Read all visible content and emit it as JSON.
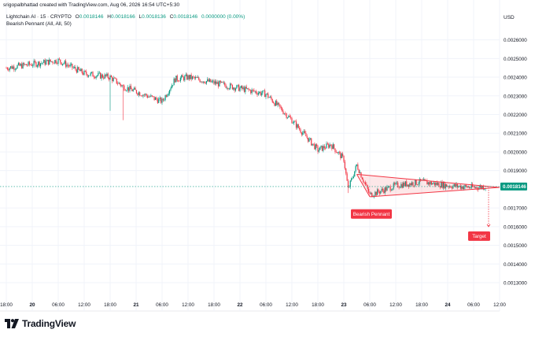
{
  "header": {
    "author_line": "srigopalbhattad created with TradingView.com, Aug 06, 2026 16:54 UTC+5:30",
    "symbol": "Lightchain AI · 15 · CRYPTO",
    "ohlc": {
      "o_label": "O",
      "o": "0.0018146",
      "h_label": "H",
      "h": "0.0018166",
      "l_label": "L",
      "l": "0.0018136",
      "c_label": "C",
      "c": "0.0018146",
      "change": "0.0000000 (0.00%)"
    },
    "indicator": "Bearish Pennant (All, All, 50)"
  },
  "price_axis": {
    "currency": "USD",
    "ticks": [
      "0.0026000",
      "0.0025000",
      "0.0024000",
      "0.0023000",
      "0.0022000",
      "0.0021000",
      "0.0020000",
      "0.0019000",
      "0.0017000",
      "0.0016000",
      "0.0015000",
      "0.0014000",
      "0.0013000"
    ],
    "last_price": "0.0018146"
  },
  "time_axis": {
    "ticks": [
      "18:00",
      "20",
      "06:00",
      "12:00",
      "18:00",
      "21",
      "06:00",
      "12:00",
      "18:00",
      "22",
      "06:00",
      "12:00",
      "18:00",
      "23",
      "06:00",
      "12:00",
      "18:00",
      "24",
      "06:00",
      "12:00"
    ]
  },
  "annotations": {
    "pattern_label": "Bearish Pennant",
    "target_label": "Target"
  },
  "colors": {
    "up": "#089981",
    "down": "#f23645",
    "pennant_fill": "#f23645",
    "grid": "#f0f3fa",
    "last_price_badge": "#089981"
  },
  "brand": {
    "name": "TradingView"
  },
  "chart_data": {
    "type": "candlestick",
    "unit": "USD",
    "ylim": [
      0.00122,
      0.00267
    ],
    "grid": true,
    "last_price": 0.0018146,
    "price_path": [
      {
        "t": "19 18:00",
        "price": 0.00245
      },
      {
        "t": "20 06:00",
        "price": 0.00249
      },
      {
        "t": "20 12:00",
        "price": 0.00242
      },
      {
        "t": "20 18:00",
        "price": 0.0024,
        "wick_low": 0.00222
      },
      {
        "t": "20 21:00",
        "price": 0.00235,
        "wick_low": 0.00217
      },
      {
        "t": "21 06:00",
        "price": 0.00227
      },
      {
        "t": "21 09:00",
        "price": 0.00239
      },
      {
        "t": "21 12:00",
        "price": 0.0024
      },
      {
        "t": "21 18:00",
        "price": 0.00237
      },
      {
        "t": "22 00:00",
        "price": 0.00234
      },
      {
        "t": "22 06:00",
        "price": 0.00231
      },
      {
        "t": "22 12:00",
        "price": 0.00217
      },
      {
        "t": "22 18:00",
        "price": 0.00201
      },
      {
        "t": "22 21:00",
        "price": 0.00204
      },
      {
        "t": "23 00:00",
        "price": 0.00196
      },
      {
        "t": "23 01:00",
        "price": 0.0018,
        "wick_low": 0.00178
      },
      {
        "t": "23 03:00",
        "price": 0.00193
      },
      {
        "t": "23 06:00",
        "price": 0.00177
      },
      {
        "t": "23 12:00",
        "price": 0.00182
      },
      {
        "t": "23 18:00",
        "price": 0.00184
      },
      {
        "t": "24 00:00",
        "price": 0.00182
      },
      {
        "t": "24 06:00",
        "price": 0.00181
      },
      {
        "t": "24 09:00",
        "price": 0.0018146
      }
    ],
    "pennant": {
      "upper_line": [
        {
          "t": "23 03:00",
          "price": 0.00188
        },
        {
          "t": "24 12:00",
          "price": 0.00181
        }
      ],
      "lower_line": [
        {
          "t": "23 06:00",
          "price": 0.00176
        },
        {
          "t": "24 12:00",
          "price": 0.00181
        }
      ],
      "target": 0.0016
    }
  }
}
